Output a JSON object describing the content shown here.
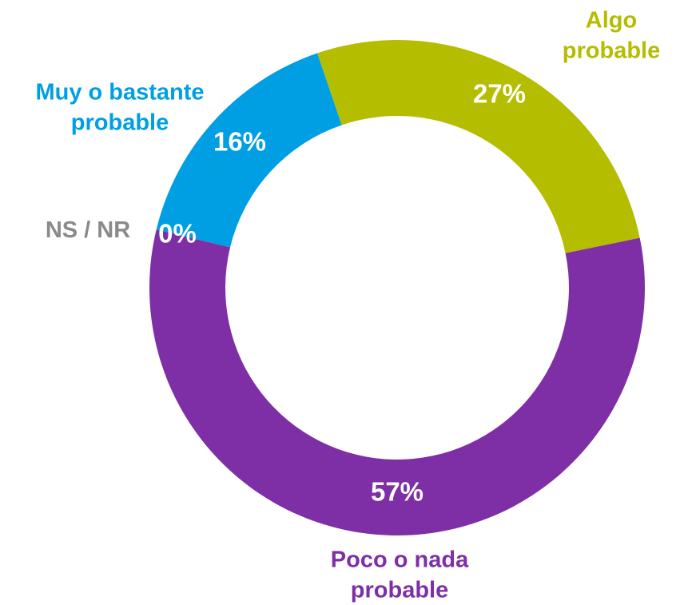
{
  "chart_data": {
    "type": "donut",
    "categories": [
      "Muy o bastante probable",
      "Algo probable",
      "Poco o nada probable",
      "NS / NR"
    ],
    "values": [
      16,
      27,
      57,
      0
    ],
    "value_labels": [
      "16%",
      "27%",
      "57%",
      "0%"
    ],
    "colors": [
      "#009fe3",
      "#b5bd00",
      "#7f2fa5",
      "#8a8a8a"
    ]
  }
}
